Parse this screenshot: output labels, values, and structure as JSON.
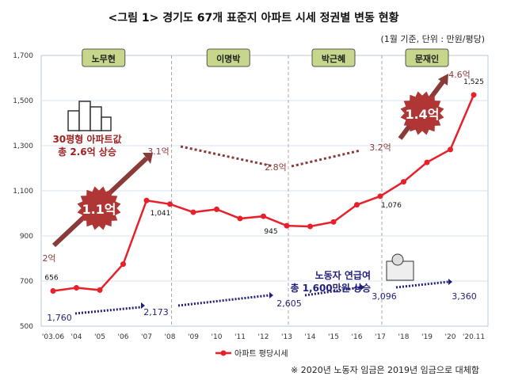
{
  "title": "<그림 1> 경기도 67개 표준지 아파트 시세 정권별 변동 현황",
  "subtitle": "(1월 기준, 단위 : 만원/평당)",
  "footnote": "※ 2020년 노동자 임금은 2019년 임금으로 대체함",
  "chart_data": {
    "type": "line",
    "categories": [
      "'03.06",
      "'04",
      "'05",
      "'06",
      "'07",
      "'08",
      "'09",
      "'10",
      "'11",
      "'12",
      "'13",
      "'14",
      "'15",
      "'16",
      "'17",
      "'18",
      "'19",
      "'20",
      "'20.11"
    ],
    "series": [
      {
        "name": "아파트 평당시세",
        "color": "#e8202a",
        "values": [
          656,
          670,
          660,
          775,
          1057,
          1041,
          1005,
          1018,
          977,
          987,
          945,
          942,
          962,
          1038,
          1076,
          1140,
          1226,
          1283,
          1525
        ]
      }
    ],
    "data_labels": {
      "0": "656",
      "5": "1,041",
      "10": "945",
      "14": "1,076",
      "18": "1,525"
    },
    "ylim": [
      500,
      1700
    ],
    "yticks": [
      "500",
      "700",
      "900",
      "1,100",
      "1,300",
      "1,500",
      "1,700"
    ],
    "ytick_values": [
      500,
      700,
      900,
      1100,
      1300,
      1500,
      1700
    ],
    "grid": true,
    "legend": "bottom",
    "eras": [
      {
        "label": "노무현",
        "from": 0,
        "to": 5
      },
      {
        "label": "이명박",
        "from": 5,
        "to": 10
      },
      {
        "label": "박근혜",
        "from": 10,
        "to": 14
      },
      {
        "label": "문재인",
        "from": 14,
        "to": 18
      }
    ],
    "era_dividers": [
      5,
      10,
      14
    ],
    "price_gains": {
      "start": "2억",
      "nmh_end": "3.1억",
      "mb_end": "2.8억",
      "gh_end": "3.2억",
      "mj_end": "4.6억",
      "nmh_burst": "1.1억",
      "mj_burst": "1.4억"
    },
    "building_note": [
      "30평형 아파트값",
      "총 2.6억 상승"
    ],
    "wage_note": [
      "노동자 연급여",
      "총 1,600만원 상승"
    ],
    "wages": [
      "1,760",
      "2,173",
      "2,605",
      "3,096",
      "3,360"
    ],
    "colors": {
      "line": "#e8202a",
      "arrow": "#8b3a3a",
      "wage": "#1f1f7a",
      "era_box": "#c6d68a",
      "grid": "#d9e3f0"
    }
  }
}
